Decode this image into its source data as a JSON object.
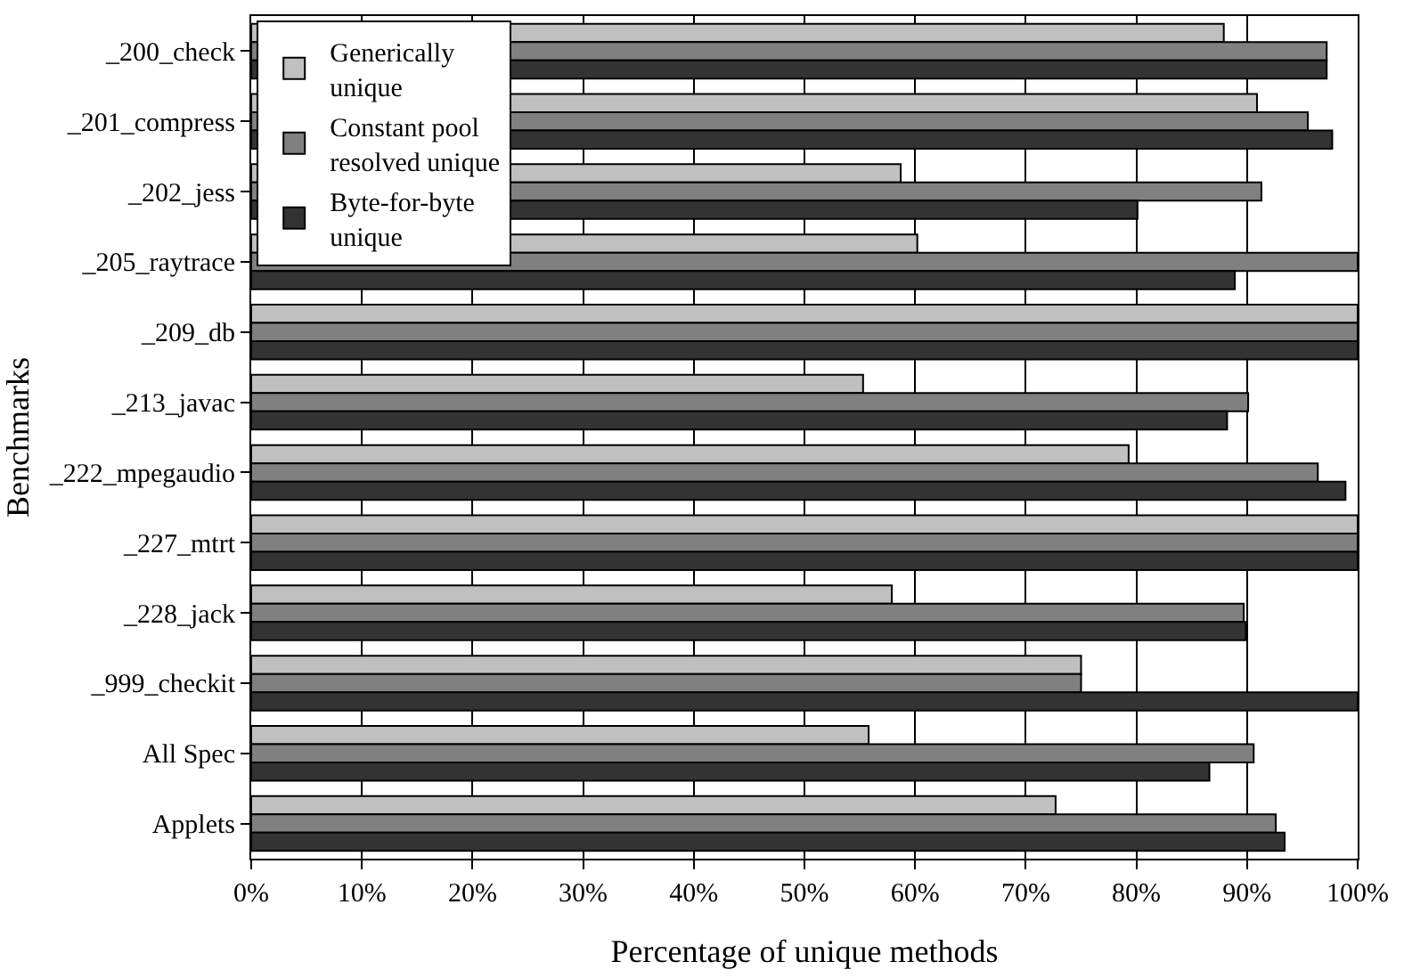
{
  "chart_data": {
    "type": "bar",
    "orientation": "horizontal",
    "xlabel": "Percentage of unique methods",
    "ylabel": "Benchmarks",
    "categories": [
      "_200_check",
      "_201_compress",
      "_202_jess",
      "_205_raytrace",
      "_209_db",
      "_213_javac",
      "_222_mpegaudio",
      "_227_mtrt",
      "_228_jack",
      "_999_checkit",
      "All Spec",
      "Applets"
    ],
    "series": [
      {
        "name": "Generically unique",
        "color": "#c0c0c0",
        "values": [
          87.9,
          90.9,
          58.7,
          60.2,
          100,
          55.3,
          79.3,
          100,
          57.9,
          75.0,
          55.8,
          72.7
        ]
      },
      {
        "name": "Constant pool resolved unique",
        "color": "#808080",
        "values": [
          97.2,
          95.5,
          91.3,
          100,
          100,
          90.1,
          96.4,
          100,
          89.7,
          75.0,
          90.6,
          92.6
        ]
      },
      {
        "name": "Byte-for-byte unique",
        "color": "#333333",
        "values": [
          97.2,
          97.7,
          80.1,
          88.9,
          100,
          88.2,
          98.9,
          100,
          89.9,
          100,
          86.6,
          93.4
        ]
      }
    ],
    "xlim": [
      0,
      100
    ],
    "xticks": [
      {
        "value": 0,
        "label": "0%"
      },
      {
        "value": 10,
        "label": "10%"
      },
      {
        "value": 20,
        "label": "20%"
      },
      {
        "value": 30,
        "label": "30%"
      },
      {
        "value": 40,
        "label": "40%"
      },
      {
        "value": 50,
        "label": "50%"
      },
      {
        "value": 60,
        "label": "60%"
      },
      {
        "value": 70,
        "label": "70%"
      },
      {
        "value": 80,
        "label": "80%"
      },
      {
        "value": 90,
        "label": "90%"
      },
      {
        "value": 100,
        "label": "100%"
      }
    ],
    "grid": "x",
    "legend": "top left"
  }
}
